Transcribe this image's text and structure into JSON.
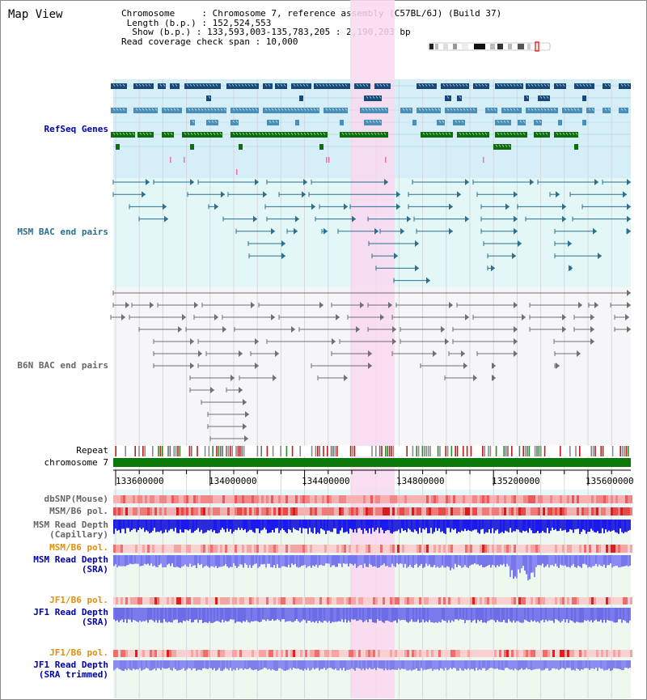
{
  "header": {
    "title": "Map View",
    "info_lines": [
      "Chromosome     : Chromosome 7, reference assembly (C57BL/6J) (Build 37)",
      " Length (b.p.) : 152,524,553",
      "  Show (b.p.) : 133,593,003-135,783,205 : 2,190,203 bp",
      "Read coverage check span : 10,000"
    ]
  },
  "tracks": {
    "refseq_genes": "RefSeq Genes",
    "msm_bac": "MSM BAC end pairs",
    "b6n_bac": "B6N BAC end pairs",
    "repeat": "Repeat",
    "chromosome": "chromosome 7",
    "dbsnp": "dbSNP(Mouse)",
    "msm_b6_pol_1": "MSM/B6 pol.",
    "msm_read_depth_cap": [
      "MSM Read Depth",
      "(Capillary)"
    ],
    "msm_b6_pol_2": "MSM/B6 pol.",
    "msm_read_depth_sra": [
      "MSM Read Depth",
      "(SRA)"
    ],
    "jf1_b6_pol_1": "JF1/B6 pol.",
    "jf1_read_depth_sra": [
      "JF1 Read Depth",
      "(SRA)"
    ],
    "jf1_b6_pol_2": "JF1/B6 pol.",
    "jf1_read_depth_trim": [
      "JF1 Read Depth",
      "(SRA trimmed)"
    ]
  },
  "axis": {
    "ticks": [
      "133600000",
      "134000000",
      "134400000",
      "134800000",
      "135200000",
      "135600000"
    ]
  },
  "colors": {
    "refseq_bg": "#d6eef8",
    "msm_bg": "#e4f7f7",
    "b6n_bg": "#f6f6f9",
    "highlight": "#f9d8f0",
    "gene_dark": "#164a7a",
    "gene_mid": "#4a8fb8",
    "gene_green": "#0d6e0d",
    "msm_line": "#2a7090",
    "b6n_line": "#707070",
    "chrom_green": "#0b7a0b",
    "title_blue": "#0000aa",
    "teal_label": "#2a6f8a",
    "gray_label": "#666666",
    "orange_label": "#e0900a"
  }
}
